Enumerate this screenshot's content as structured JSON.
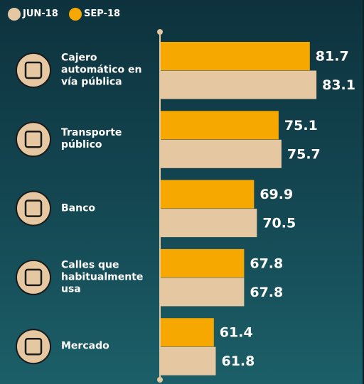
{
  "chart_data": {
    "type": "hbar",
    "categories": [
      "Cajero automático en vía pública",
      "Transporte público",
      "Banco",
      "Calles que habitualmente usa",
      "Mercado"
    ],
    "series": [
      {
        "name": "JUN-18",
        "color": "#e5c8a2",
        "values": [
          83.1,
          75.7,
          70.5,
          67.8,
          61.8
        ]
      },
      {
        "name": "SEP-18",
        "color": "#f7a800",
        "values": [
          81.7,
          75.1,
          69.9,
          67.8,
          61.4
        ]
      }
    ],
    "xlim": [
      50,
      90
    ]
  }
}
